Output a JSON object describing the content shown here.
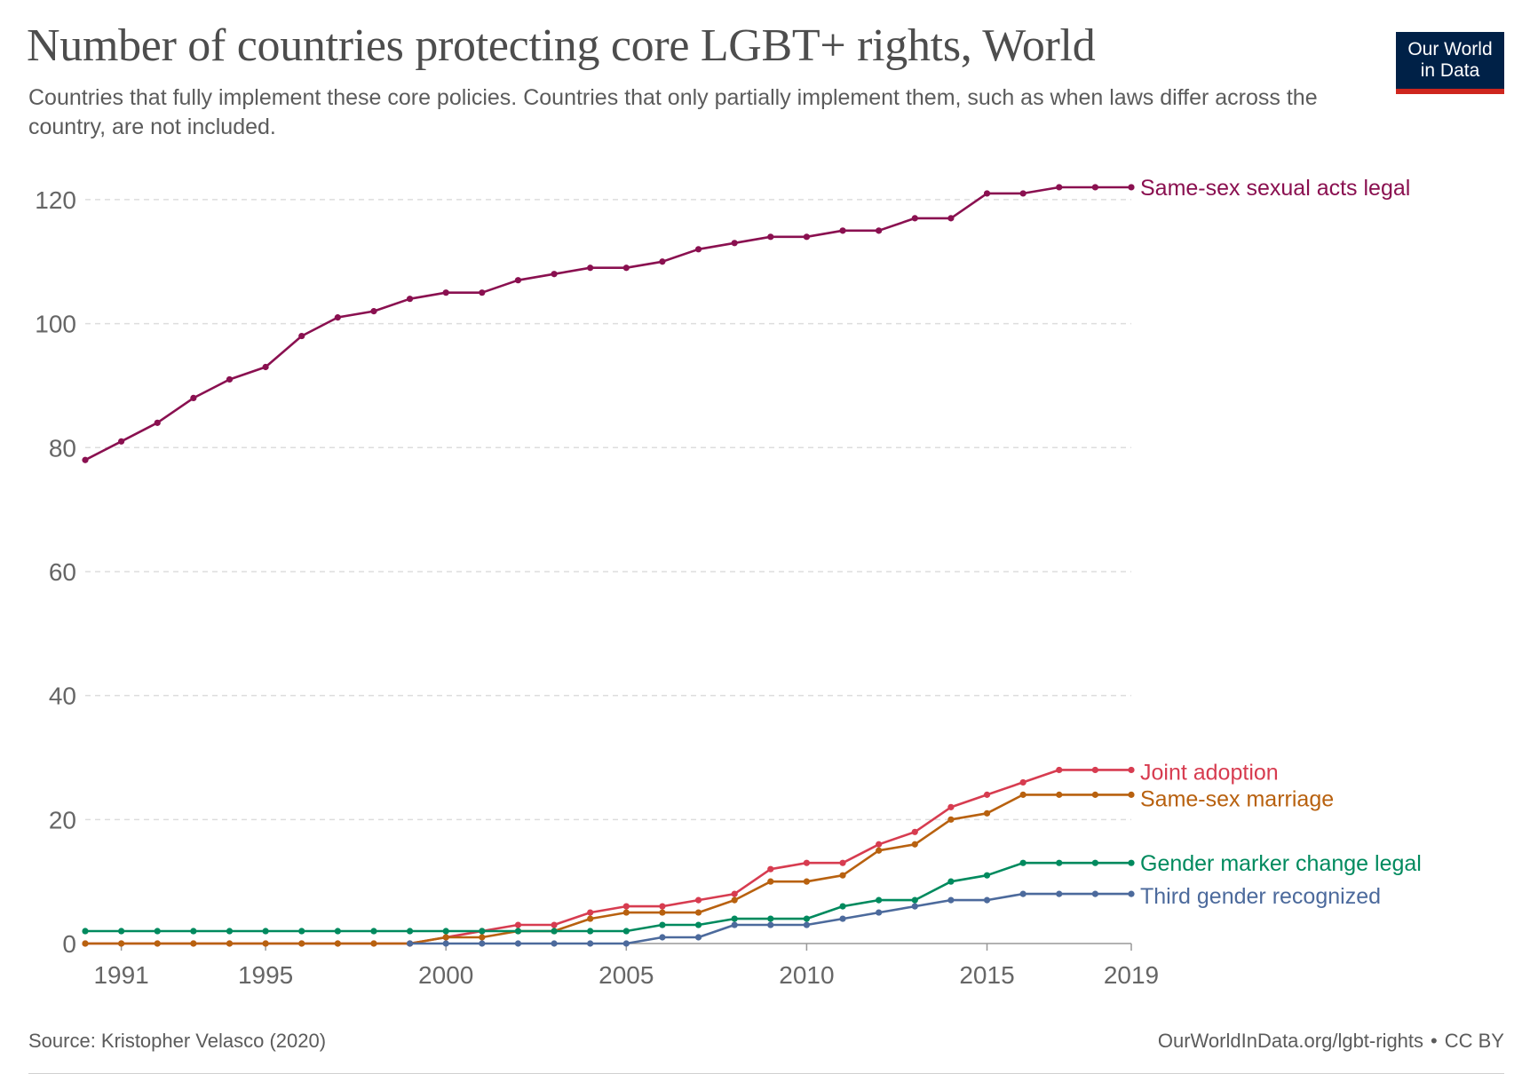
{
  "title": "Number of countries protecting core LGBT+ rights, World",
  "subtitle": "Countries that fully implement these core policies. Countries that only partially implement them, such as when laws differ across the country, are not included.",
  "logo": {
    "line1": "Our World",
    "line2": "in Data",
    "bg": "#002147",
    "accent": "#ce261e"
  },
  "footer": {
    "source": "Source: Kristopher Velasco (2020)",
    "url": "OurWorldInData.org/lgbt-rights",
    "separator": "•",
    "license": "CC BY"
  },
  "chart_data": {
    "type": "line",
    "xlim": [
      1990,
      2019
    ],
    "ylim": [
      0,
      125
    ],
    "x_ticks": [
      1991,
      1995,
      2000,
      2005,
      2010,
      2015,
      2019
    ],
    "y_ticks": [
      0,
      20,
      40,
      60,
      80,
      100,
      120
    ],
    "grid": "horizontal dashed",
    "legend": "labels at line ends (right)",
    "series": [
      {
        "name": "Same-sex sexual acts legal",
        "color": "#8a1050",
        "points": [
          [
            1990,
            78
          ],
          [
            1991,
            81
          ],
          [
            1992,
            84
          ],
          [
            1993,
            88
          ],
          [
            1994,
            91
          ],
          [
            1995,
            93
          ],
          [
            1996,
            98
          ],
          [
            1997,
            101
          ],
          [
            1998,
            102
          ],
          [
            1999,
            104
          ],
          [
            2000,
            105
          ],
          [
            2001,
            105
          ],
          [
            2002,
            107
          ],
          [
            2003,
            108
          ],
          [
            2004,
            109
          ],
          [
            2005,
            109
          ],
          [
            2006,
            110
          ],
          [
            2007,
            112
          ],
          [
            2008,
            113
          ],
          [
            2009,
            114
          ],
          [
            2010,
            114
          ],
          [
            2011,
            115
          ],
          [
            2012,
            115
          ],
          [
            2013,
            117
          ],
          [
            2014,
            117
          ],
          [
            2015,
            121
          ],
          [
            2016,
            121
          ],
          [
            2017,
            122
          ],
          [
            2018,
            122
          ],
          [
            2019,
            122
          ]
        ]
      },
      {
        "name": "Joint adoption",
        "color": "#d73c50",
        "points": [
          [
            1990,
            0
          ],
          [
            1991,
            0
          ],
          [
            1992,
            0
          ],
          [
            1993,
            0
          ],
          [
            1994,
            0
          ],
          [
            1995,
            0
          ],
          [
            1996,
            0
          ],
          [
            1997,
            0
          ],
          [
            1998,
            0
          ],
          [
            1999,
            0
          ],
          [
            2000,
            1
          ],
          [
            2001,
            2
          ],
          [
            2002,
            3
          ],
          [
            2003,
            3
          ],
          [
            2004,
            5
          ],
          [
            2005,
            6
          ],
          [
            2006,
            6
          ],
          [
            2007,
            7
          ],
          [
            2008,
            8
          ],
          [
            2009,
            12
          ],
          [
            2010,
            13
          ],
          [
            2011,
            13
          ],
          [
            2012,
            16
          ],
          [
            2013,
            18
          ],
          [
            2014,
            22
          ],
          [
            2015,
            24
          ],
          [
            2016,
            26
          ],
          [
            2017,
            28
          ],
          [
            2018,
            28
          ],
          [
            2019,
            28
          ]
        ]
      },
      {
        "name": "Same-sex marriage",
        "color": "#b8610f",
        "points": [
          [
            1990,
            0
          ],
          [
            1991,
            0
          ],
          [
            1992,
            0
          ],
          [
            1993,
            0
          ],
          [
            1994,
            0
          ],
          [
            1995,
            0
          ],
          [
            1996,
            0
          ],
          [
            1997,
            0
          ],
          [
            1998,
            0
          ],
          [
            1999,
            0
          ],
          [
            2000,
            1
          ],
          [
            2001,
            1
          ],
          [
            2002,
            2
          ],
          [
            2003,
            2
          ],
          [
            2004,
            4
          ],
          [
            2005,
            5
          ],
          [
            2006,
            5
          ],
          [
            2007,
            5
          ],
          [
            2008,
            7
          ],
          [
            2009,
            10
          ],
          [
            2010,
            10
          ],
          [
            2011,
            11
          ],
          [
            2012,
            15
          ],
          [
            2013,
            16
          ],
          [
            2014,
            20
          ],
          [
            2015,
            21
          ],
          [
            2016,
            24
          ],
          [
            2017,
            24
          ],
          [
            2018,
            24
          ],
          [
            2019,
            24
          ]
        ]
      },
      {
        "name": "Gender marker change legal",
        "color": "#008a5e",
        "points": [
          [
            1990,
            2
          ],
          [
            1991,
            2
          ],
          [
            1992,
            2
          ],
          [
            1993,
            2
          ],
          [
            1994,
            2
          ],
          [
            1995,
            2
          ],
          [
            1996,
            2
          ],
          [
            1997,
            2
          ],
          [
            1998,
            2
          ],
          [
            1999,
            2
          ],
          [
            2000,
            2
          ],
          [
            2001,
            2
          ],
          [
            2002,
            2
          ],
          [
            2003,
            2
          ],
          [
            2004,
            2
          ],
          [
            2005,
            2
          ],
          [
            2006,
            3
          ],
          [
            2007,
            3
          ],
          [
            2008,
            4
          ],
          [
            2009,
            4
          ],
          [
            2010,
            4
          ],
          [
            2011,
            6
          ],
          [
            2012,
            7
          ],
          [
            2013,
            7
          ],
          [
            2014,
            10
          ],
          [
            2015,
            11
          ],
          [
            2016,
            13
          ],
          [
            2017,
            13
          ],
          [
            2018,
            13
          ],
          [
            2019,
            13
          ]
        ]
      },
      {
        "name": "Third gender recognized",
        "color": "#4c6a9c",
        "points": [
          [
            1999,
            0
          ],
          [
            2000,
            0
          ],
          [
            2001,
            0
          ],
          [
            2002,
            0
          ],
          [
            2003,
            0
          ],
          [
            2004,
            0
          ],
          [
            2005,
            0
          ],
          [
            2006,
            1
          ],
          [
            2007,
            1
          ],
          [
            2008,
            3
          ],
          [
            2009,
            3
          ],
          [
            2010,
            3
          ],
          [
            2011,
            4
          ],
          [
            2012,
            5
          ],
          [
            2013,
            6
          ],
          [
            2014,
            7
          ],
          [
            2015,
            7
          ],
          [
            2016,
            8
          ],
          [
            2017,
            8
          ],
          [
            2018,
            8
          ],
          [
            2019,
            8
          ]
        ]
      }
    ]
  }
}
